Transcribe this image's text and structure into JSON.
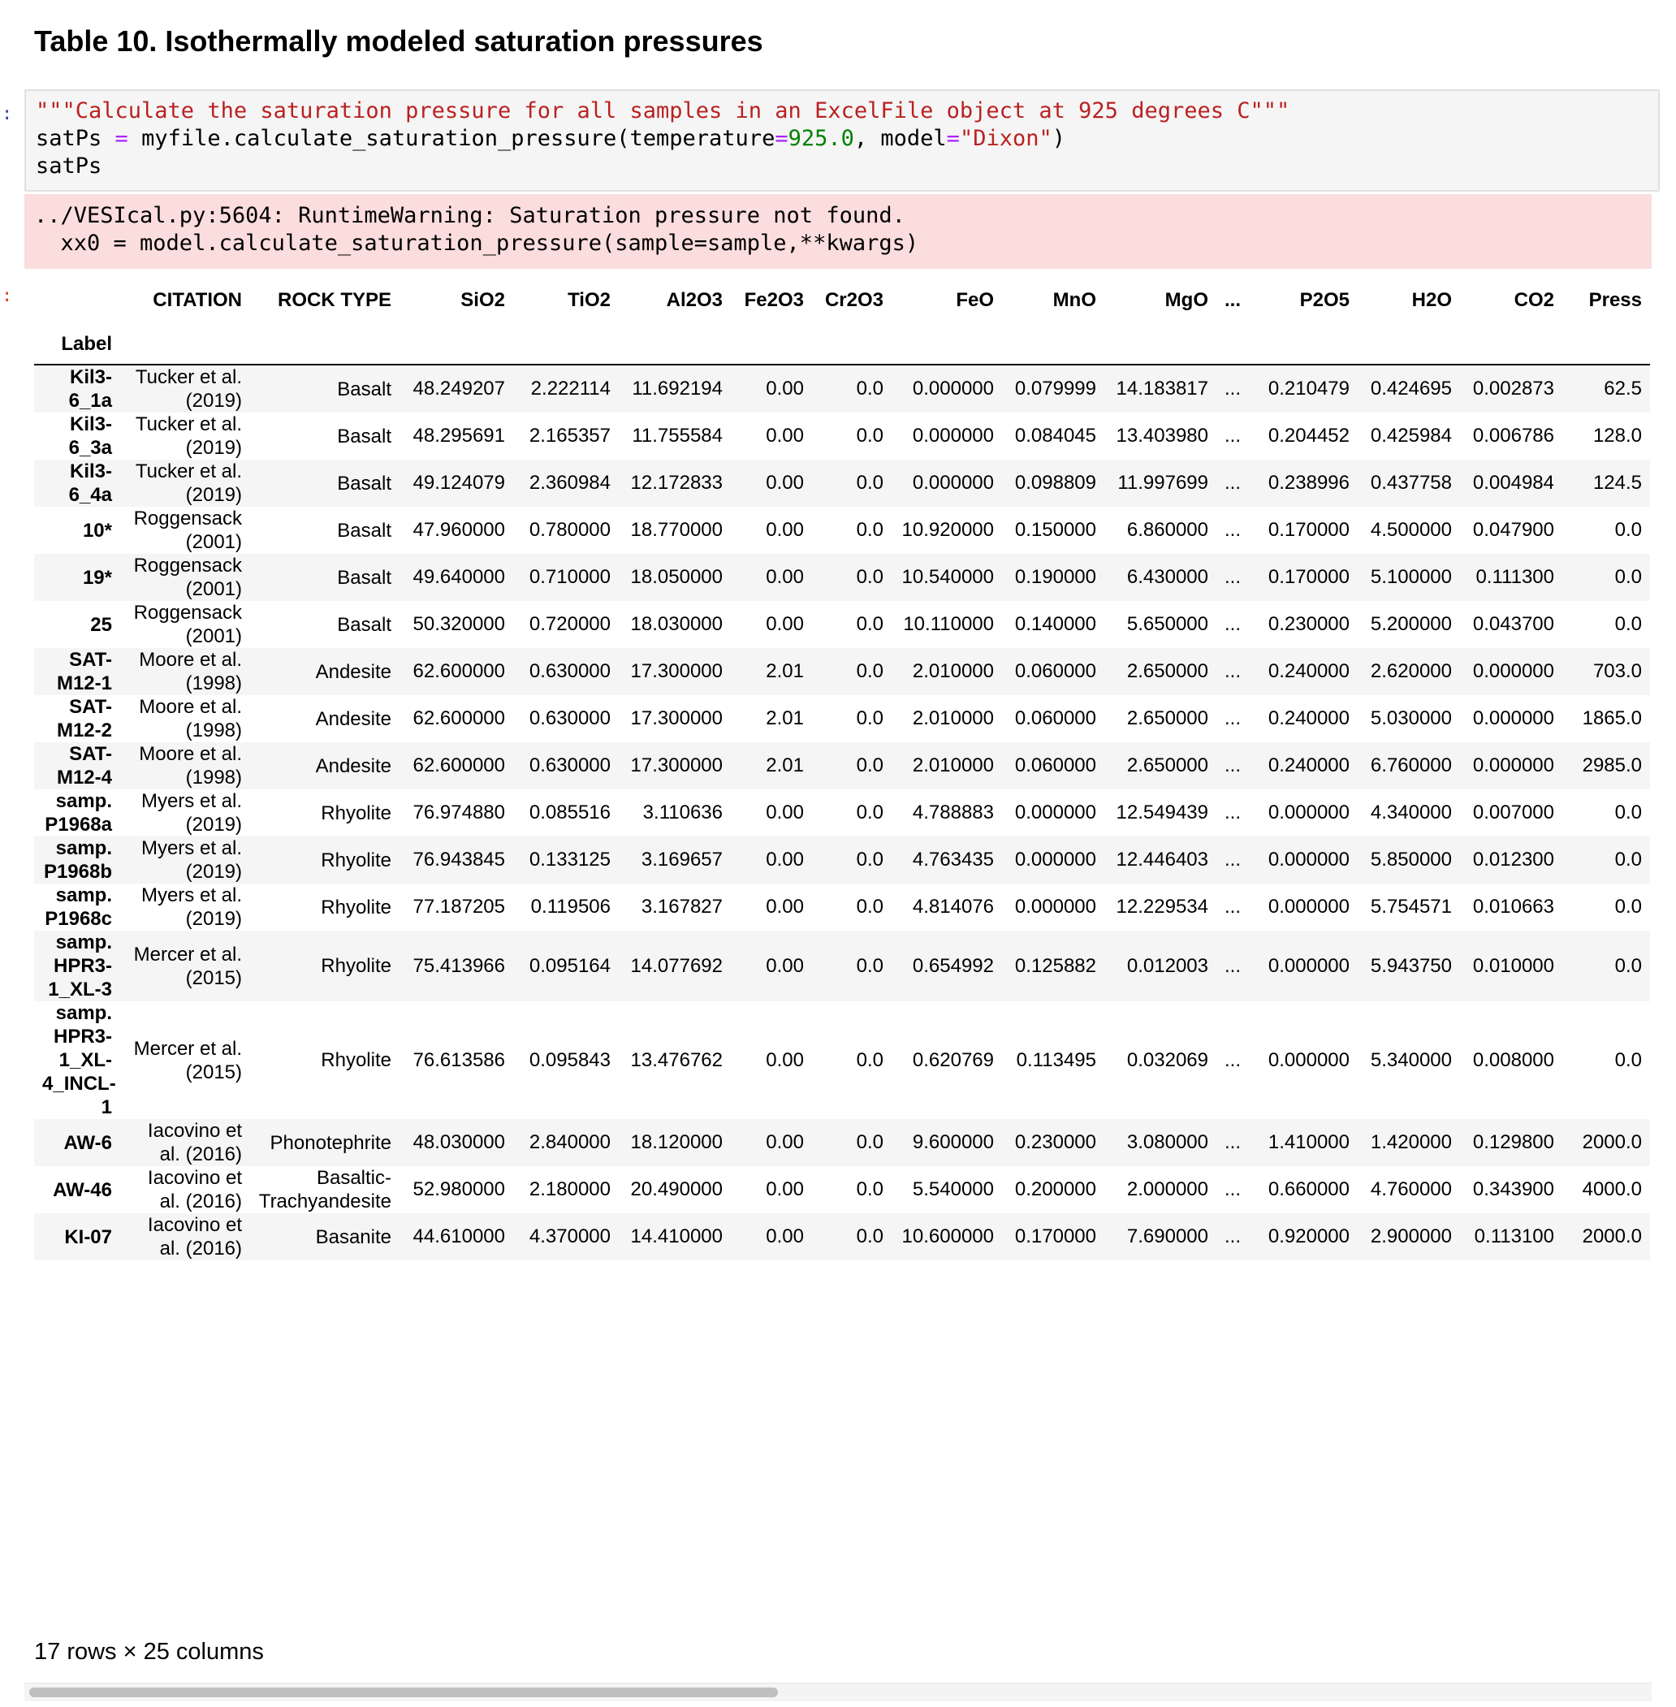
{
  "heading": "Table 10. Isothermally modeled saturation pressures",
  "prompts": {
    "input": ":",
    "output": ":"
  },
  "code": {
    "line1": "\"\"\"Calculate the saturation pressure for all samples in an ExcelFile object at 925 degrees C\"\"\"",
    "line2_a": "satPs ",
    "line2_op1": "=",
    "line2_b": " myfile.calculate_saturation_pressure(temperature",
    "line2_op2": "=",
    "line2_num": "925.0",
    "line2_c": ", model",
    "line2_op3": "=",
    "line2_str": "\"Dixon\"",
    "line2_d": ")",
    "line3": "satPs"
  },
  "stderr": {
    "line1": "../VESIcal.py:5604: RuntimeWarning: Saturation pressure not found.",
    "line2": "  xx0 = model.calculate_saturation_pressure(sample=sample,**kwargs)"
  },
  "table": {
    "index_name": "Label",
    "columns": [
      "CITATION",
      "ROCK TYPE",
      "SiO2",
      "TiO2",
      "Al2O3",
      "Fe2O3",
      "Cr2O3",
      "FeO",
      "MnO",
      "MgO",
      "...",
      "P2O5",
      "H2O",
      "CO2",
      "Press"
    ],
    "rows": [
      {
        "label": "Kil3-6_1a",
        "cells": [
          "Tucker et al. (2019)",
          "Basalt",
          "48.249207",
          "2.222114",
          "11.692194",
          "0.00",
          "0.0",
          "0.000000",
          "0.079999",
          "14.183817",
          "...",
          "0.210479",
          "0.424695",
          "0.002873",
          "62.5"
        ]
      },
      {
        "label": "Kil3-6_3a",
        "cells": [
          "Tucker et al. (2019)",
          "Basalt",
          "48.295691",
          "2.165357",
          "11.755584",
          "0.00",
          "0.0",
          "0.000000",
          "0.084045",
          "13.403980",
          "...",
          "0.204452",
          "0.425984",
          "0.006786",
          "128.0"
        ]
      },
      {
        "label": "Kil3-6_4a",
        "cells": [
          "Tucker et al. (2019)",
          "Basalt",
          "49.124079",
          "2.360984",
          "12.172833",
          "0.00",
          "0.0",
          "0.000000",
          "0.098809",
          "11.997699",
          "...",
          "0.238996",
          "0.437758",
          "0.004984",
          "124.5"
        ]
      },
      {
        "label": "10*",
        "cells": [
          "Roggensack (2001)",
          "Basalt",
          "47.960000",
          "0.780000",
          "18.770000",
          "0.00",
          "0.0",
          "10.920000",
          "0.150000",
          "6.860000",
          "...",
          "0.170000",
          "4.500000",
          "0.047900",
          "0.0"
        ]
      },
      {
        "label": "19*",
        "cells": [
          "Roggensack (2001)",
          "Basalt",
          "49.640000",
          "0.710000",
          "18.050000",
          "0.00",
          "0.0",
          "10.540000",
          "0.190000",
          "6.430000",
          "...",
          "0.170000",
          "5.100000",
          "0.111300",
          "0.0"
        ]
      },
      {
        "label": "25",
        "cells": [
          "Roggensack (2001)",
          "Basalt",
          "50.320000",
          "0.720000",
          "18.030000",
          "0.00",
          "0.0",
          "10.110000",
          "0.140000",
          "5.650000",
          "...",
          "0.230000",
          "5.200000",
          "0.043700",
          "0.0"
        ]
      },
      {
        "label": "SAT-M12-1",
        "cells": [
          "Moore et al. (1998)",
          "Andesite",
          "62.600000",
          "0.630000",
          "17.300000",
          "2.01",
          "0.0",
          "2.010000",
          "0.060000",
          "2.650000",
          "...",
          "0.240000",
          "2.620000",
          "0.000000",
          "703.0"
        ]
      },
      {
        "label": "SAT-M12-2",
        "cells": [
          "Moore et al. (1998)",
          "Andesite",
          "62.600000",
          "0.630000",
          "17.300000",
          "2.01",
          "0.0",
          "2.010000",
          "0.060000",
          "2.650000",
          "...",
          "0.240000",
          "5.030000",
          "0.000000",
          "1865.0"
        ]
      },
      {
        "label": "SAT-M12-4",
        "cells": [
          "Moore et al. (1998)",
          "Andesite",
          "62.600000",
          "0.630000",
          "17.300000",
          "2.01",
          "0.0",
          "2.010000",
          "0.060000",
          "2.650000",
          "...",
          "0.240000",
          "6.760000",
          "0.000000",
          "2985.0"
        ]
      },
      {
        "label": "samp. P1968a",
        "cells": [
          "Myers et al. (2019)",
          "Rhyolite",
          "76.974880",
          "0.085516",
          "3.110636",
          "0.00",
          "0.0",
          "4.788883",
          "0.000000",
          "12.549439",
          "...",
          "0.000000",
          "4.340000",
          "0.007000",
          "0.0"
        ]
      },
      {
        "label": "samp. P1968b",
        "cells": [
          "Myers et al. (2019)",
          "Rhyolite",
          "76.943845",
          "0.133125",
          "3.169657",
          "0.00",
          "0.0",
          "4.763435",
          "0.000000",
          "12.446403",
          "...",
          "0.000000",
          "5.850000",
          "0.012300",
          "0.0"
        ]
      },
      {
        "label": "samp. P1968c",
        "cells": [
          "Myers et al. (2019)",
          "Rhyolite",
          "77.187205",
          "0.119506",
          "3.167827",
          "0.00",
          "0.0",
          "4.814076",
          "0.000000",
          "12.229534",
          "...",
          "0.000000",
          "5.754571",
          "0.010663",
          "0.0"
        ]
      },
      {
        "label": "samp. HPR3-1_XL-3",
        "cells": [
          "Mercer et al. (2015)",
          "Rhyolite",
          "75.413966",
          "0.095164",
          "14.077692",
          "0.00",
          "0.0",
          "0.654992",
          "0.125882",
          "0.012003",
          "...",
          "0.000000",
          "5.943750",
          "0.010000",
          "0.0"
        ]
      },
      {
        "label": "samp. HPR3-1_XL-4_INCL-1",
        "cells": [
          "Mercer et al. (2015)",
          "Rhyolite",
          "76.613586",
          "0.095843",
          "13.476762",
          "0.00",
          "0.0",
          "0.620769",
          "0.113495",
          "0.032069",
          "...",
          "0.000000",
          "5.340000",
          "0.008000",
          "0.0"
        ]
      },
      {
        "label": "AW-6",
        "cells": [
          "Iacovino et al. (2016)",
          "Phonotephrite",
          "48.030000",
          "2.840000",
          "18.120000",
          "0.00",
          "0.0",
          "9.600000",
          "0.230000",
          "3.080000",
          "...",
          "1.410000",
          "1.420000",
          "0.129800",
          "2000.0"
        ]
      },
      {
        "label": "AW-46",
        "cells": [
          "Iacovino et al. (2016)",
          "Basaltic-Trachyandesite",
          "52.980000",
          "2.180000",
          "20.490000",
          "0.00",
          "0.0",
          "5.540000",
          "0.200000",
          "2.000000",
          "...",
          "0.660000",
          "4.760000",
          "0.343900",
          "4000.0"
        ]
      },
      {
        "label": "KI-07",
        "cells": [
          "Iacovino et al. (2016)",
          "Basanite",
          "44.610000",
          "4.370000",
          "14.410000",
          "0.00",
          "0.0",
          "10.600000",
          "0.170000",
          "7.690000",
          "...",
          "0.920000",
          "2.900000",
          "0.113100",
          "2000.0"
        ]
      }
    ]
  },
  "summary": "17 rows × 25 columns",
  "scrollbar": {
    "thumb_fraction": 0.46
  }
}
